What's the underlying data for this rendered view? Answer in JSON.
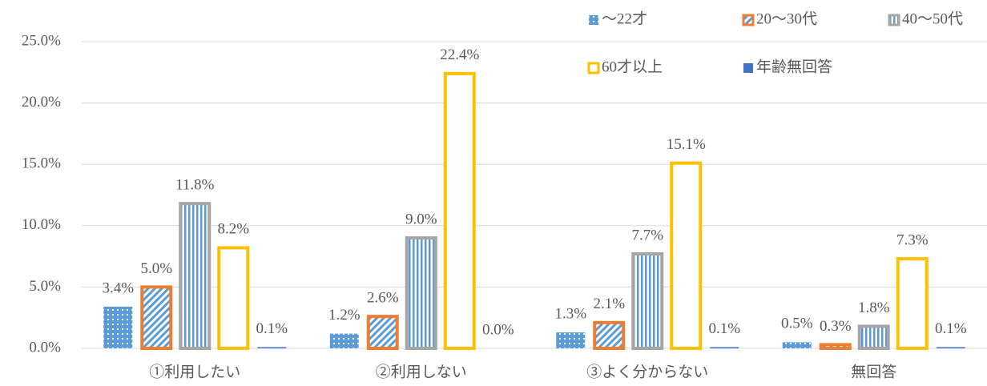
{
  "chart_data": {
    "type": "bar",
    "categories": [
      "①利用したい",
      "②利用しない",
      "③よく分からない",
      "無回答"
    ],
    "series": [
      {
        "name": "～22才",
        "color": "#5b9bd5",
        "values": [
          3.4,
          1.2,
          1.3,
          0.5
        ],
        "value_labels": [
          "3.4%",
          "1.2%",
          "1.3%",
          "0.5%"
        ]
      },
      {
        "name": "20～30代",
        "color": "#ed7d31",
        "values": [
          5.0,
          2.6,
          2.1,
          0.3
        ],
        "value_labels": [
          "5.0%",
          "2.6%",
          "2.1%",
          "0.3%"
        ]
      },
      {
        "name": "40～50代",
        "color": "#a5a5a5",
        "values": [
          11.8,
          9.0,
          7.7,
          1.8
        ],
        "value_labels": [
          "11.8%",
          "9.0%",
          "7.7%",
          "1.8%"
        ]
      },
      {
        "name": "60才以上",
        "color": "#ffc000",
        "values": [
          8.2,
          22.4,
          15.1,
          7.3
        ],
        "value_labels": [
          "8.2%",
          "22.4%",
          "15.1%",
          "7.3%"
        ]
      },
      {
        "name": "年齢無回答",
        "color": "#4472c4",
        "values": [
          0.1,
          0.0,
          0.1,
          0.1
        ],
        "value_labels": [
          "0.1%",
          "0.0%",
          "0.1%",
          "0.1%"
        ]
      }
    ],
    "ylim": [
      0,
      25
    ],
    "yticks": [
      {
        "value": 0,
        "label": "0.0%"
      },
      {
        "value": 5,
        "label": "5.0%"
      },
      {
        "value": 10,
        "label": "10.0%"
      },
      {
        "value": 15,
        "label": "15.0%"
      },
      {
        "value": 20,
        "label": "20.0%"
      },
      {
        "value": 25,
        "label": "25.0%"
      }
    ],
    "grid": true,
    "legend": "top-right"
  }
}
